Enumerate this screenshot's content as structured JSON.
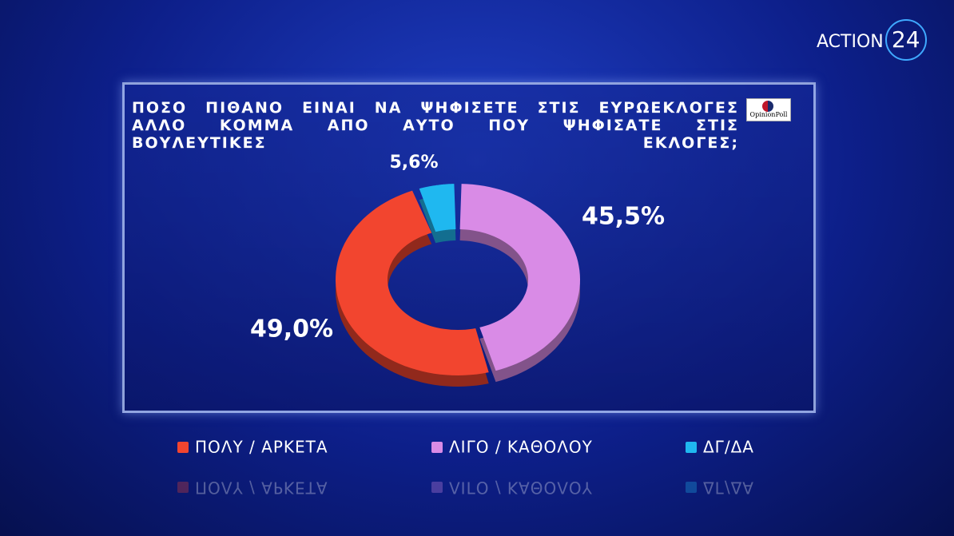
{
  "brand": {
    "name": "ACTION",
    "number": "24",
    "pollster": "OpinionPoll"
  },
  "chart_data": {
    "type": "donut",
    "title": "ΠΟΣΟ ΠΙΘΑΝΟ ΕΙΝΑΙ ΝΑ ΨΗΦΙΣΕΤΕ ΣΤΙΣ ΕΥΡΩΕΚΛΟΓΕΣ ΑΛΛΟ ΚΟΜΜΑ ΑΠΟ ΑΥΤΟ ΠΟΥ ΨΗΦΙΣΑΤΕ ΣΤΙΣ ΒΟΥΛΕΥΤΙΚΕΣ ΕΚΛΟΓΕΣ;",
    "categories": [
      "ΠΟΛΥ / ΑΡΚΕΤΑ",
      "ΛΙΓΟ / ΚΑΘΟΛΟΥ",
      "ΔΓ/ΔΑ"
    ],
    "values": [
      49.0,
      45.5,
      5.6
    ],
    "value_labels": [
      "49,0%",
      "45,5%",
      "5,6%"
    ],
    "colors": [
      "#f2452f",
      "#d98be6",
      "#1fb8f0"
    ]
  }
}
